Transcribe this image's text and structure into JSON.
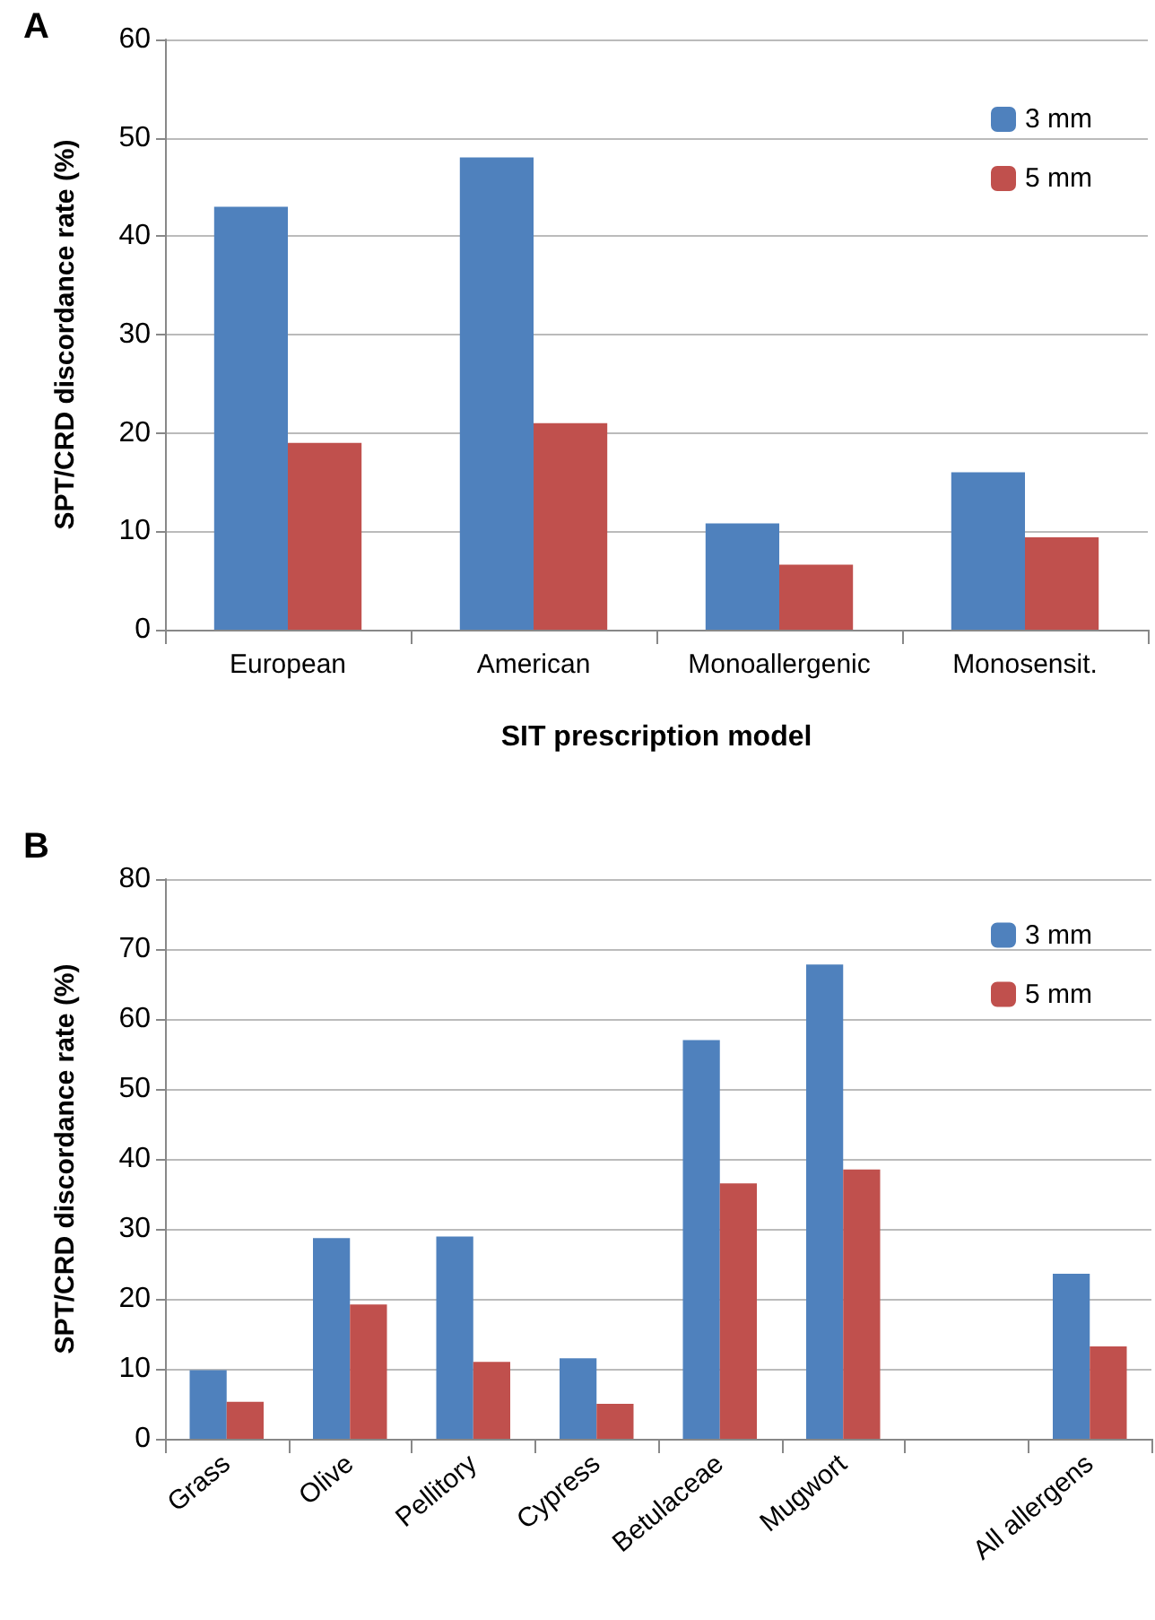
{
  "chart_data": [
    {
      "type": "bar",
      "title": "A",
      "xlabel": "SIT prescription model",
      "ylabel": "SPT/CRD discordance rate (%)",
      "categories": [
        "European",
        "American",
        "Monoallergenic",
        "Monosensit."
      ],
      "series": [
        {
          "name": "3 mm",
          "color": "#4f81bd",
          "values": [
            43,
            48,
            10.8,
            16
          ]
        },
        {
          "name": "5 mm",
          "color": "#c0504d",
          "values": [
            19,
            21,
            6.6,
            9.4
          ]
        }
      ],
      "ylim": [
        0,
        60
      ],
      "yticks": [
        0,
        10,
        20,
        30,
        40,
        50,
        60
      ],
      "grid": "y",
      "legend": "top right"
    },
    {
      "type": "bar",
      "title": "B",
      "ylabel": "SPT/CRD discordance rate (%)",
      "categories": [
        "Grass",
        "Olive",
        "Pellitory",
        "Cypress",
        "Betulaceae",
        "Mugwort",
        null,
        "All allergens"
      ],
      "series": [
        {
          "name": "3 mm",
          "color": "#4f81bd",
          "values": [
            9.8,
            28.7,
            28.9,
            11.5,
            57,
            67.8,
            null,
            23.6
          ]
        },
        {
          "name": "5 mm",
          "color": "#c0504d",
          "values": [
            5.3,
            19.2,
            11,
            5,
            36.5,
            38.5,
            null,
            13.2
          ]
        }
      ],
      "ylim": [
        0,
        80
      ],
      "yticks": [
        0,
        10,
        20,
        30,
        40,
        50,
        60,
        70,
        80
      ],
      "grid": "y",
      "legend": "top right"
    }
  ]
}
